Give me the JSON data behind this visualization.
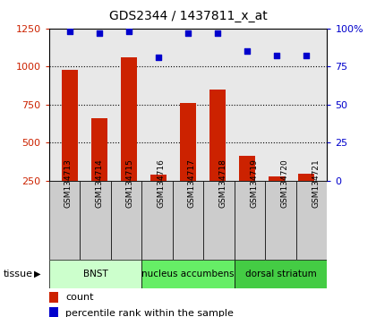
{
  "title": "GDS2344 / 1437811_x_at",
  "samples": [
    "GSM134713",
    "GSM134714",
    "GSM134715",
    "GSM134716",
    "GSM134717",
    "GSM134718",
    "GSM134719",
    "GSM134720",
    "GSM134721"
  ],
  "counts": [
    980,
    660,
    1060,
    290,
    760,
    850,
    415,
    280,
    295
  ],
  "percentiles": [
    98,
    97,
    98,
    81,
    97,
    97,
    85,
    82,
    82
  ],
  "ylim_left": [
    250,
    1250
  ],
  "ylim_right": [
    0,
    100
  ],
  "yticks_left": [
    250,
    500,
    750,
    1000,
    1250
  ],
  "yticks_right": [
    0,
    25,
    50,
    75,
    100
  ],
  "bar_color": "#cc2200",
  "dot_color": "#0000cc",
  "tissue_groups": [
    {
      "label": "BNST",
      "start": 0,
      "end": 3,
      "color": "#ccffcc"
    },
    {
      "label": "nucleus accumbens",
      "start": 3,
      "end": 6,
      "color": "#66ee66"
    },
    {
      "label": "dorsal striatum",
      "start": 6,
      "end": 9,
      "color": "#44cc44"
    }
  ],
  "tissue_label": "tissue",
  "legend_count_label": "count",
  "legend_pct_label": "percentile rank within the sample",
  "bar_width": 0.55,
  "plot_bg": "#e8e8e8",
  "xtick_bg": "#cccccc",
  "grid_yticks": [
    500,
    750,
    1000
  ]
}
